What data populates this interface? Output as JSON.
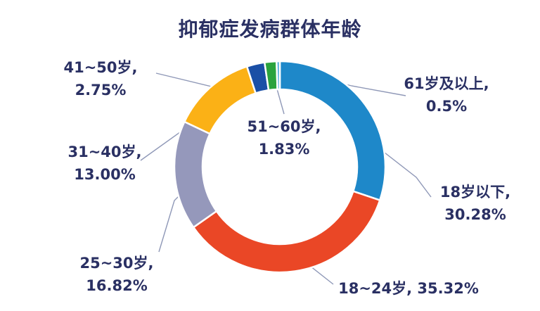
{
  "title": "抑郁症发病群体年龄",
  "chart_data": {
    "type": "pie",
    "subtype": "donut",
    "title": "抑郁症发病群体年龄",
    "legend_position": "none",
    "labels_style": "outside-callouts",
    "categories": [
      "18岁以下",
      "18~24岁",
      "25~30岁",
      "31~40岁",
      "41~50岁",
      "51~60岁",
      "61岁及以上"
    ],
    "values": [
      30.28,
      35.32,
      16.82,
      13.0,
      2.75,
      1.83,
      0.5
    ],
    "unit": "%",
    "colors": [
      "#1e88c9",
      "#ea4726",
      "#9598bb",
      "#fbb116",
      "#1a4fa6",
      "#2ba33d",
      "#56aede"
    ],
    "start_angle_deg": 0,
    "direction": "clockwise"
  },
  "labels": [
    {
      "id": "under-18",
      "line1": "18岁以下,",
      "line2": "30.28%"
    },
    {
      "id": "18-24",
      "line1": "18~24岁, 35.32%",
      "line2": ""
    },
    {
      "id": "25-30",
      "line1": "25~30岁,",
      "line2": "16.82%"
    },
    {
      "id": "31-40",
      "line1": "31~40岁,",
      "line2": "13.00%"
    },
    {
      "id": "41-50",
      "line1": "41~50岁,",
      "line2": "2.75%"
    },
    {
      "id": "51-60",
      "line1": "51~60岁,",
      "line2": "1.83%"
    },
    {
      "id": "61-plus",
      "line1": "61岁及以上,",
      "line2": "0.5%"
    }
  ],
  "colors": {
    "text": "#2a3063",
    "leader_line": "#7b86aa",
    "background": "#ffffff",
    "slice_border": "#ffffff"
  }
}
